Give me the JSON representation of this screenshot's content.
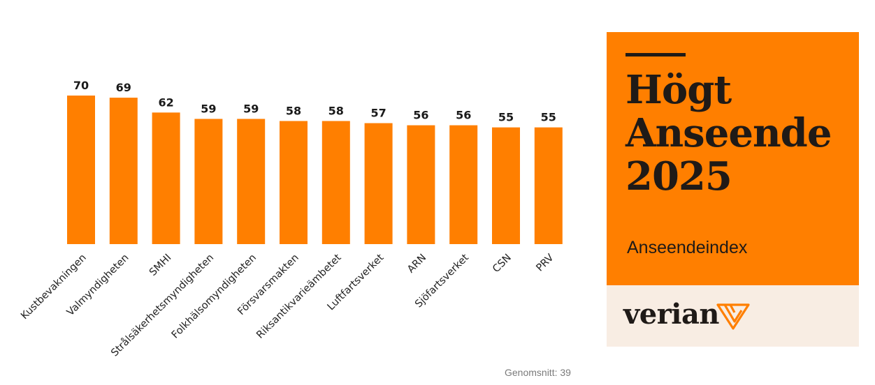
{
  "chart_data": {
    "type": "bar",
    "categories": [
      "Kustbevakningen",
      "Valmyndigheten",
      "SMHI",
      "Strålsäkerhetsmyndigheten",
      "Folkhälsomyndigheten",
      "Försvarsmakten",
      "Riksantikvarieämbetet",
      "Luftfartsverket",
      "ARN",
      "Sjöfartsverket",
      "CSN",
      "PRV"
    ],
    "values": [
      70,
      69,
      62,
      59,
      59,
      58,
      58,
      57,
      56,
      56,
      55,
      55
    ],
    "value_labels": [
      "70",
      "69",
      "62",
      "59",
      "59",
      "58",
      "58",
      "57",
      "56",
      "56",
      "55",
      "55"
    ],
    "ylim": [
      0,
      70
    ],
    "grid": false,
    "bar_color": "#ff7f00"
  },
  "panel": {
    "title_lines": [
      "Högt",
      "Anseende",
      "2025"
    ],
    "subtitle": "Anseendeindex",
    "logo_text": "verian",
    "logo_icon": "verian-triangle-logo-icon",
    "accent_color": "#ff7f00",
    "footer_bg_color": "#f8ede3"
  },
  "footnote": "Genomsnitt: 39"
}
